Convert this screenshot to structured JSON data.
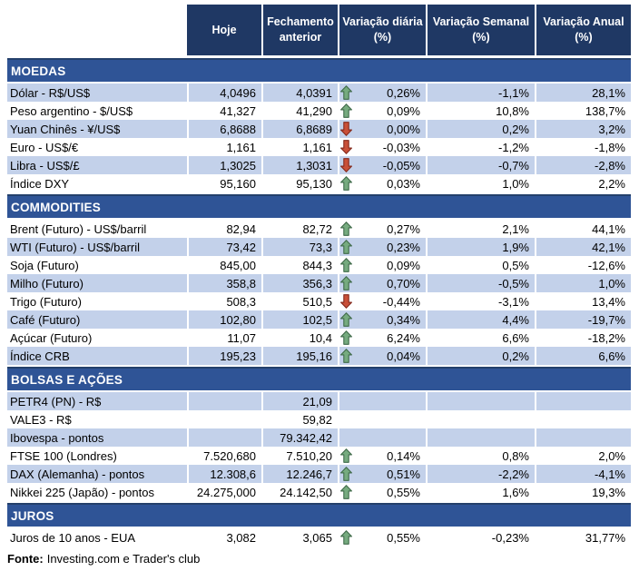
{
  "chart_data": {
    "type": "table",
    "columns": [
      "",
      "Hoje",
      "Fechamento anterior",
      "Variação diária (%)",
      "Variação Semanal (%)",
      "Variação Anual (%)"
    ],
    "sections": [
      {
        "title": "MOEDAS",
        "rows": [
          {
            "label": "Dólar - R$/US$",
            "hoje": "4,0496",
            "fechamento": "4,0391",
            "arrow": "up",
            "daily": "0,26%",
            "weekly": "-1,1%",
            "annual": "28,1%",
            "shade": "blue"
          },
          {
            "label": "Peso argentino - $/US$",
            "hoje": "41,327",
            "fechamento": "41,290",
            "arrow": "up",
            "daily": "0,09%",
            "weekly": "10,8%",
            "annual": "138,7%",
            "shade": "white"
          },
          {
            "label": "Yuan Chinês - ¥/US$",
            "hoje": "6,8688",
            "fechamento": "6,8689",
            "arrow": "down",
            "daily": "0,00%",
            "weekly": "0,2%",
            "annual": "3,2%",
            "shade": "blue"
          },
          {
            "label": "Euro - US$/€",
            "hoje": "1,161",
            "fechamento": "1,161",
            "arrow": "down",
            "daily": "-0,03%",
            "weekly": "-1,2%",
            "annual": "-1,8%",
            "shade": "white"
          },
          {
            "label": "Libra - US$/£",
            "hoje": "1,3025",
            "fechamento": "1,3031",
            "arrow": "down",
            "daily": "-0,05%",
            "weekly": "-0,7%",
            "annual": "-2,8%",
            "shade": "blue"
          },
          {
            "label": "Índice DXY",
            "hoje": "95,160",
            "fechamento": "95,130",
            "arrow": "up",
            "daily": "0,03%",
            "weekly": "1,0%",
            "annual": "2,2%",
            "shade": "white"
          }
        ]
      },
      {
        "title": "COMMODITIES",
        "rows": [
          {
            "label": "Brent (Futuro) - US$/barril",
            "hoje": "82,94",
            "fechamento": "82,72",
            "arrow": "up",
            "daily": "0,27%",
            "weekly": "2,1%",
            "annual": "44,1%",
            "shade": "white"
          },
          {
            "label": "WTI (Futuro) - US$/barril",
            "hoje": "73,42",
            "fechamento": "73,3",
            "arrow": "up",
            "daily": "0,23%",
            "weekly": "1,9%",
            "annual": "42,1%",
            "shade": "blue"
          },
          {
            "label": "Soja (Futuro)",
            "hoje": "845,00",
            "fechamento": "844,3",
            "arrow": "up",
            "daily": "0,09%",
            "weekly": "0,5%",
            "annual": "-12,6%",
            "shade": "white"
          },
          {
            "label": "Milho (Futuro)",
            "hoje": "358,8",
            "fechamento": "356,3",
            "arrow": "up",
            "daily": "0,70%",
            "weekly": "-0,5%",
            "annual": "1,0%",
            "shade": "blue"
          },
          {
            "label": "Trigo (Futuro)",
            "hoje": "508,3",
            "fechamento": "510,5",
            "arrow": "down",
            "daily": "-0,44%",
            "weekly": "-3,1%",
            "annual": "13,4%",
            "shade": "white"
          },
          {
            "label": "Café (Futuro)",
            "hoje": "102,80",
            "fechamento": "102,5",
            "arrow": "up",
            "daily": "0,34%",
            "weekly": "4,4%",
            "annual": "-19,7%",
            "shade": "blue"
          },
          {
            "label": "Açúcar (Futuro)",
            "hoje": "11,07",
            "fechamento": "10,4",
            "arrow": "up",
            "daily": "6,24%",
            "weekly": "6,6%",
            "annual": "-18,2%",
            "shade": "white"
          },
          {
            "label": "Índice CRB",
            "hoje": "195,23",
            "fechamento": "195,16",
            "arrow": "up",
            "daily": "0,04%",
            "weekly": "0,2%",
            "annual": "6,6%",
            "shade": "blue"
          }
        ]
      },
      {
        "title": "BOLSAS E AÇÕES",
        "rows": [
          {
            "label": "PETR4 (PN) - R$",
            "hoje": "",
            "fechamento": "21,09",
            "arrow": "",
            "daily": "",
            "weekly": "",
            "annual": "",
            "shade": "blue"
          },
          {
            "label": "VALE3 - R$",
            "hoje": "",
            "fechamento": "59,82",
            "arrow": "",
            "daily": "",
            "weekly": "",
            "annual": "",
            "shade": "white"
          },
          {
            "label": "Ibovespa - pontos",
            "hoje": "",
            "fechamento": "79.342,42",
            "arrow": "",
            "daily": "",
            "weekly": "",
            "annual": "",
            "shade": "blue"
          },
          {
            "label": "FTSE 100 (Londres)",
            "hoje": "7.520,680",
            "fechamento": "7.510,20",
            "arrow": "up",
            "daily": "0,14%",
            "weekly": "0,8%",
            "annual": "2,0%",
            "shade": "white"
          },
          {
            "label": "DAX (Alemanha) - pontos",
            "hoje": "12.308,6",
            "fechamento": "12.246,7",
            "arrow": "up",
            "daily": "0,51%",
            "weekly": "-2,2%",
            "annual": "-4,1%",
            "shade": "blue"
          },
          {
            "label": "Nikkei 225 (Japão) - pontos",
            "hoje": "24.275,000",
            "fechamento": "24.142,50",
            "arrow": "up",
            "daily": "0,55%",
            "weekly": "1,6%",
            "annual": "19,3%",
            "shade": "white"
          }
        ]
      },
      {
        "title": "JUROS",
        "rows": [
          {
            "label": "Juros de 10 anos - EUA",
            "hoje": "3,082",
            "fechamento": "3,065",
            "arrow": "up",
            "daily": "0,55%",
            "weekly": "-0,23%",
            "annual": "31,77%",
            "shade": "white"
          }
        ]
      }
    ]
  },
  "footer": {
    "source_label": "Fonte:",
    "source_text": "Investing.com e Trader's club"
  },
  "colors": {
    "header_bg": "#1F3864",
    "section_bg": "#2F5496",
    "row_alt_bg": "#C3D1EA",
    "up_arrow": "#76AB7F",
    "down_arrow": "#C94F38"
  }
}
